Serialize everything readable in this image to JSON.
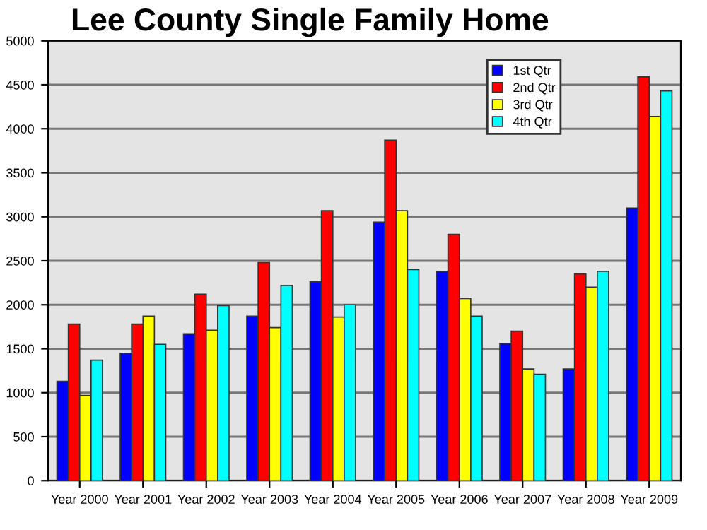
{
  "chart_data": {
    "type": "bar",
    "title": "Lee County Single Family Home",
    "categories": [
      "Year 2000",
      "Year 2001",
      "Year 2002",
      "Year 2003",
      "Year 2004",
      "Year 2005",
      "Year 2006",
      "Year 2007",
      "Year 2008",
      "Year 2009"
    ],
    "series": [
      {
        "name": "1st Qtr",
        "color": "#0000ff",
        "values": [
          1130,
          1450,
          1670,
          1870,
          2260,
          2940,
          2380,
          1560,
          1270,
          3100
        ]
      },
      {
        "name": "2nd Qtr",
        "color": "#ff0000",
        "values": [
          1780,
          1780,
          2120,
          2480,
          3070,
          3870,
          2800,
          1700,
          2350,
          4590
        ]
      },
      {
        "name": "3rd Qtr",
        "color": "#ffff00",
        "values": [
          970,
          1870,
          1710,
          1740,
          1860,
          3070,
          2070,
          1270,
          2200,
          4140
        ]
      },
      {
        "name": "4th Qtr",
        "color": "#00ffff",
        "values": [
          1370,
          1550,
          1990,
          2220,
          2000,
          2400,
          1870,
          1210,
          2380,
          4430
        ]
      }
    ],
    "ylim": [
      0,
      5000
    ],
    "yticks": [
      0,
      500,
      1000,
      1500,
      2000,
      2500,
      3000,
      3500,
      4000,
      4500,
      5000
    ],
    "grid": "y",
    "legend": "top right"
  }
}
